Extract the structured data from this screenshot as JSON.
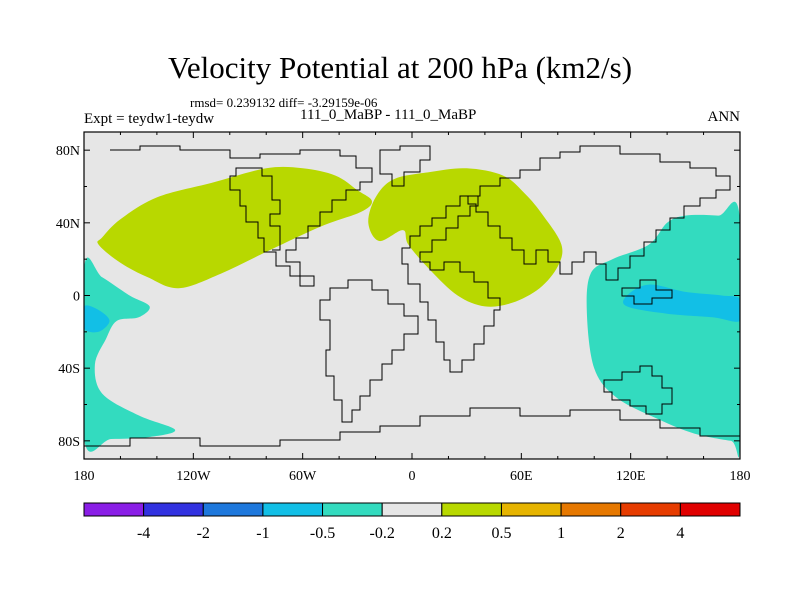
{
  "title": "Velocity Potential at 200 hPa (km2/s)",
  "stats_line": "rmsd= 0.239132 diff= -3.29159e-06",
  "experiment": "Expt = teydw1-teydw",
  "cases": "111_0_MaBP - 111_0_MaBP",
  "season": "ANN",
  "colors": {
    "background": "#e6e6e6",
    "negative_light": "#33dbbf",
    "negative_mid": "#12bfe6",
    "positive_light": "#b8d800",
    "outline": "#000000"
  },
  "chart_data": {
    "type": "heatmap",
    "title": "Velocity Potential at 200 hPa (km2/s)",
    "xlabel": "",
    "ylabel": "",
    "xlim": [
      -180,
      180
    ],
    "ylim": [
      -90,
      90
    ],
    "x_ticks": [
      {
        "value": -180,
        "label": "180"
      },
      {
        "value": -120,
        "label": "120W"
      },
      {
        "value": -60,
        "label": "60W"
      },
      {
        "value": 0,
        "label": "0"
      },
      {
        "value": 60,
        "label": "60E"
      },
      {
        "value": 120,
        "label": "120E"
      },
      {
        "value": 180,
        "label": "180"
      }
    ],
    "y_ticks": [
      {
        "value": 80,
        "label": "80N"
      },
      {
        "value": 40,
        "label": "40N"
      },
      {
        "value": 0,
        "label": "0"
      },
      {
        "value": -40,
        "label": "40S"
      },
      {
        "value": -80,
        "label": "80S"
      }
    ],
    "colorbar": {
      "colors": [
        "#8a1ee6",
        "#3232e0",
        "#1e78dc",
        "#12bfe6",
        "#33dbbf",
        "#e6e6e6",
        "#b8d800",
        "#e6b400",
        "#e67800",
        "#e63c00",
        "#e00000"
      ],
      "tick_labels": [
        "-4",
        "-2",
        "-1",
        "-0.5",
        "-0.2",
        "0.2",
        "0.5",
        "1",
        "2",
        "4"
      ]
    },
    "regions": [
      {
        "name": "positive-north-america-europe",
        "level": "0.2 to 0.5",
        "color": "#b8d800",
        "lonlat": [
          [
            -170,
            32
          ],
          [
            -160,
            42
          ],
          [
            -140,
            54
          ],
          [
            -110,
            62
          ],
          [
            -80,
            70
          ],
          [
            -60,
            70
          ],
          [
            -42,
            66
          ],
          [
            -30,
            58
          ],
          [
            -22,
            52
          ],
          [
            -28,
            46
          ],
          [
            -50,
            38
          ],
          [
            -80,
            24
          ],
          [
            -105,
            12
          ],
          [
            -128,
            4
          ],
          [
            -145,
            10
          ],
          [
            -160,
            18
          ],
          [
            -172,
            28
          ]
        ]
      },
      {
        "name": "positive-eurasia",
        "level": "0.2 to 0.5",
        "color": "#b8d800",
        "lonlat": [
          [
            -5,
            36
          ],
          [
            -18,
            30
          ],
          [
            -24,
            40
          ],
          [
            -20,
            54
          ],
          [
            -10,
            64
          ],
          [
            10,
            68
          ],
          [
            30,
            70
          ],
          [
            50,
            66
          ],
          [
            62,
            56
          ],
          [
            72,
            44
          ],
          [
            82,
            28
          ],
          [
            80,
            16
          ],
          [
            70,
            4
          ],
          [
            55,
            -4
          ],
          [
            40,
            -6
          ],
          [
            25,
            0
          ],
          [
            10,
            14
          ],
          [
            -2,
            28
          ]
        ]
      },
      {
        "name": "negative-west-pacific",
        "level": "-0.5 to -0.2",
        "color": "#33dbbf",
        "lonlat": [
          [
            -180,
            15
          ],
          [
            -170,
            10
          ],
          [
            -155,
            0
          ],
          [
            -144,
            -6
          ],
          [
            -150,
            -12
          ],
          [
            -162,
            -14
          ],
          [
            -168,
            -24
          ],
          [
            -174,
            -38
          ],
          [
            -170,
            -54
          ],
          [
            -150,
            -66
          ],
          [
            -130,
            -74
          ],
          [
            -145,
            -78
          ],
          [
            -165,
            -79
          ],
          [
            -180,
            -79
          ]
        ]
      },
      {
        "name": "negative-east-pacific",
        "level": "-0.5 to -0.2",
        "color": "#33dbbf",
        "lonlat": [
          [
            180,
            42
          ],
          [
            168,
            44
          ],
          [
            150,
            44
          ],
          [
            140,
            40
          ],
          [
            130,
            28
          ],
          [
            110,
            20
          ],
          [
            98,
            12
          ],
          [
            96,
            -10
          ],
          [
            100,
            -40
          ],
          [
            112,
            -56
          ],
          [
            135,
            -68
          ],
          [
            155,
            -76
          ],
          [
            175,
            -80
          ],
          [
            180,
            -80
          ]
        ]
      },
      {
        "name": "negative-core-pacific",
        "level": "-1 to -0.5",
        "color": "#12bfe6",
        "lonlat": [
          [
            180,
            -2
          ],
          [
            170,
            0
          ],
          [
            150,
            2
          ],
          [
            130,
            6
          ],
          [
            118,
            0
          ],
          [
            118,
            -6
          ],
          [
            140,
            -10
          ],
          [
            165,
            -12
          ],
          [
            180,
            -14
          ]
        ]
      },
      {
        "name": "negative-core-west-edge",
        "level": "-1 to -0.5",
        "color": "#12bfe6",
        "lonlat": [
          [
            -180,
            -6
          ],
          [
            -172,
            -8
          ],
          [
            -166,
            -14
          ],
          [
            -172,
            -20
          ],
          [
            -180,
            -18
          ]
        ]
      }
    ]
  }
}
